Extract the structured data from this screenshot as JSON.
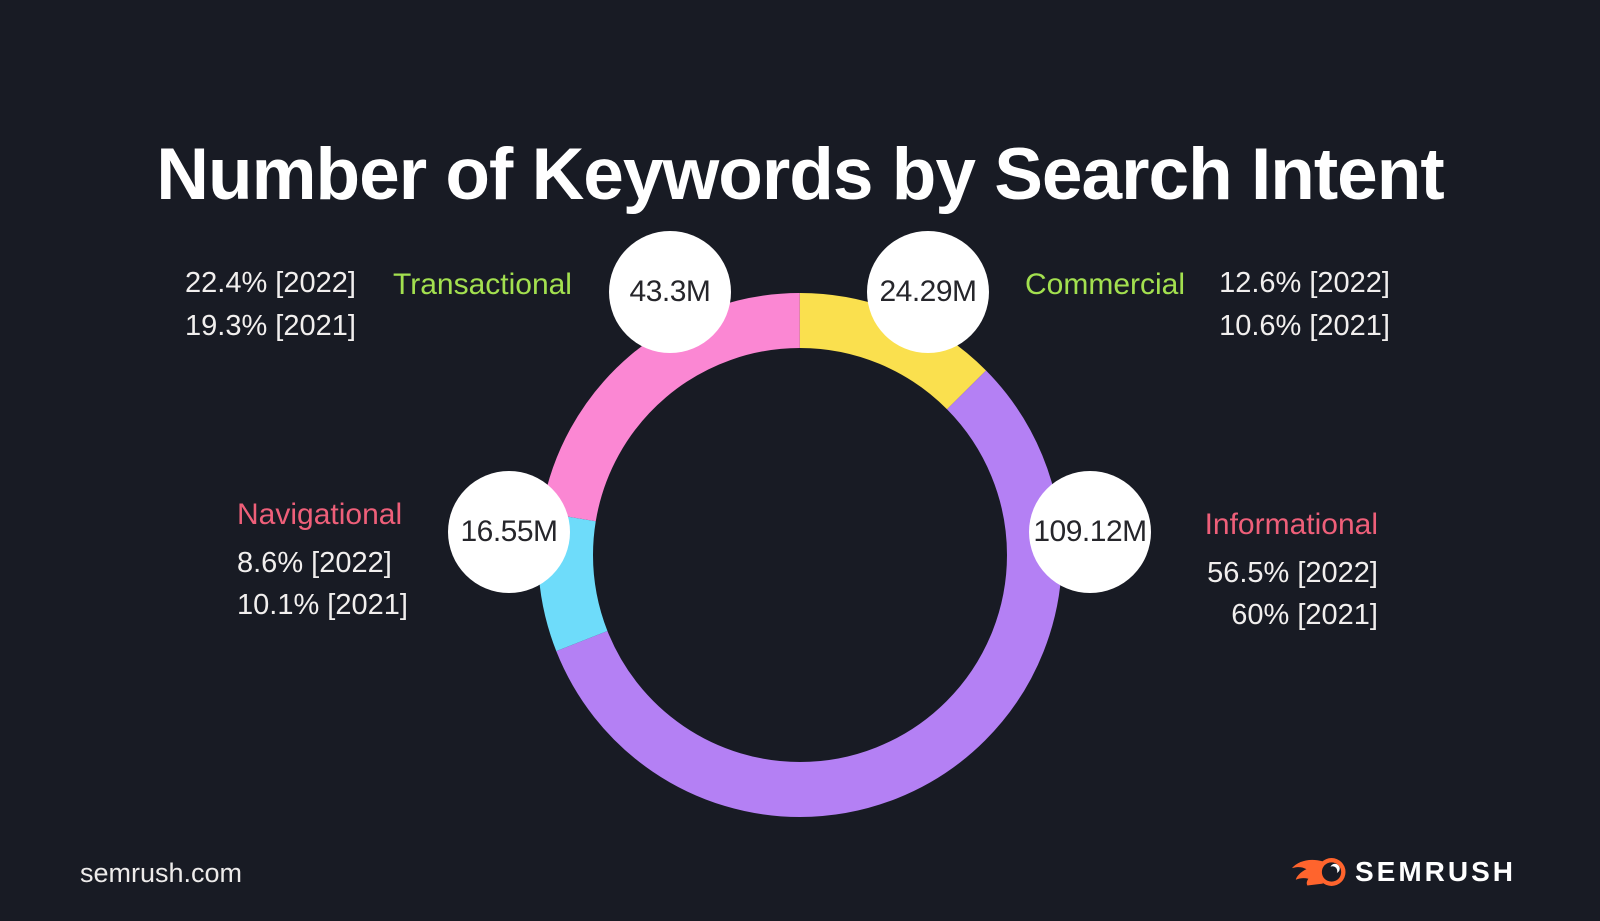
{
  "title": "Number of Keywords by Search Intent",
  "chart_data": {
    "type": "pie",
    "variant": "donut",
    "title": "Number of Keywords by Search Intent",
    "direction": "clockwise",
    "start_angle_deg_from_top": 0,
    "legend_position": "around-chart",
    "categories": [
      "Commercial",
      "Informational",
      "Navigational",
      "Transactional"
    ],
    "series": [
      {
        "name": "Share 2022 (%)",
        "values": [
          12.6,
          56.5,
          8.6,
          22.4
        ]
      },
      {
        "name": "Share 2021 (%)",
        "values": [
          10.6,
          60,
          10.1,
          19.3
        ]
      },
      {
        "name": "Keywords (millions, 2022)",
        "values": [
          24.29,
          109.12,
          16.55,
          43.3
        ]
      }
    ],
    "segments": [
      {
        "name": "Commercial",
        "value_label": "24.29M",
        "value_millions": 24.29,
        "share_2022_pct": 12.6,
        "share_2021_pct": 10.6,
        "line_2022": "12.6% [2022]",
        "line_2021": "10.6% [2021]",
        "color": "#fae04e",
        "name_color": "#a3e04f"
      },
      {
        "name": "Informational",
        "value_label": "109.12M",
        "value_millions": 109.12,
        "share_2022_pct": 56.5,
        "share_2021_pct": 60,
        "line_2022": "56.5% [2022]",
        "line_2021": "60% [2021]",
        "color": "#b480f4",
        "name_color": "#ee5f79"
      },
      {
        "name": "Navigational",
        "value_label": "16.55M",
        "value_millions": 16.55,
        "share_2022_pct": 8.6,
        "share_2021_pct": 10.1,
        "line_2022": "8.6% [2022]",
        "line_2021": "10.1% [2021]",
        "color": "#6edcfa",
        "name_color": "#ee5f79"
      },
      {
        "name": "Transactional",
        "value_label": "43.3M",
        "value_millions": 43.3,
        "share_2022_pct": 22.4,
        "share_2021_pct": 19.3,
        "line_2022": "22.4% [2022]",
        "line_2021": "19.3% [2021]",
        "color": "#fb87d3",
        "name_color": "#a3e04f"
      }
    ]
  },
  "footer": {
    "website": "semrush.com",
    "brand": "SEMRUSH"
  },
  "colors": {
    "background": "#181b24",
    "title_text": "#ffffff",
    "body_text": "#f1efee",
    "badge_bg": "#ffffff",
    "badge_text": "#26262b",
    "green_label": "#a3e04f",
    "pink_label": "#ee5f79",
    "segment_commercial": "#fae04e",
    "segment_informational": "#b480f4",
    "segment_navigational": "#6edcfa",
    "segment_transactional": "#fb87d3",
    "brand_orange": "#ff642d"
  }
}
